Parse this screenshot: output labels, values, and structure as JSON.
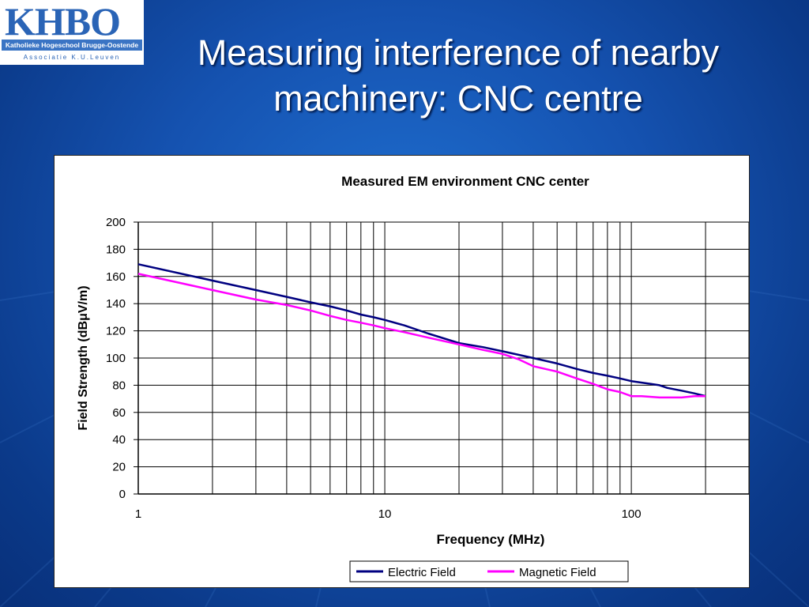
{
  "logo": {
    "name": "KHBO",
    "subtitle": "Katholieke Hogeschool Brugge-Oostende",
    "tagline": "Associatie K.U.Leuven"
  },
  "slide": {
    "title": "Measuring interference of nearby machinery: CNC centre"
  },
  "chart_data": {
    "type": "line",
    "title": "Measured EM environment CNC center",
    "xlabel": "Frequency (MHz)",
    "ylabel": "Field Strength (dBμV/m)",
    "x_scale": "log",
    "xlim": [
      1,
      300
    ],
    "ylim": [
      0,
      200
    ],
    "x_ticks": [
      1,
      10,
      100
    ],
    "x_tick_labels": [
      "1",
      "10",
      "100"
    ],
    "y_ticks": [
      0,
      20,
      40,
      60,
      80,
      100,
      120,
      140,
      160,
      180,
      200
    ],
    "y_tick_labels": [
      "0",
      "20",
      "40",
      "60",
      "80",
      "100",
      "120",
      "140",
      "160",
      "180",
      "200"
    ],
    "grid": true,
    "legend": "bottom-center",
    "series": [
      {
        "name": "Electric Field",
        "color": "#000080",
        "points": [
          [
            1,
            169
          ],
          [
            2,
            157
          ],
          [
            3,
            150
          ],
          [
            4,
            145
          ],
          [
            5,
            141
          ],
          [
            6,
            138
          ],
          [
            7,
            135
          ],
          [
            8,
            132
          ],
          [
            9,
            130
          ],
          [
            10,
            128
          ],
          [
            12,
            124
          ],
          [
            15,
            118
          ],
          [
            20,
            111
          ],
          [
            25,
            108
          ],
          [
            30,
            105
          ],
          [
            40,
            100
          ],
          [
            50,
            96
          ],
          [
            60,
            92
          ],
          [
            70,
            89
          ],
          [
            80,
            87
          ],
          [
            90,
            85
          ],
          [
            100,
            83
          ],
          [
            120,
            81
          ],
          [
            130,
            80
          ],
          [
            140,
            78
          ],
          [
            160,
            76
          ],
          [
            180,
            74
          ],
          [
            200,
            72
          ]
        ]
      },
      {
        "name": "Magnetic Field",
        "color": "#ff00ff",
        "points": [
          [
            1,
            162
          ],
          [
            2,
            150
          ],
          [
            3,
            143
          ],
          [
            4,
            139
          ],
          [
            5,
            135
          ],
          [
            6,
            131
          ],
          [
            7,
            128
          ],
          [
            8,
            126
          ],
          [
            9,
            124
          ],
          [
            10,
            122
          ],
          [
            12,
            119
          ],
          [
            15,
            115
          ],
          [
            20,
            110
          ],
          [
            25,
            106
          ],
          [
            30,
            103
          ],
          [
            35,
            99
          ],
          [
            40,
            94
          ],
          [
            50,
            90
          ],
          [
            60,
            85
          ],
          [
            70,
            81
          ],
          [
            80,
            77
          ],
          [
            90,
            75
          ],
          [
            100,
            72
          ],
          [
            110,
            72
          ],
          [
            130,
            71
          ],
          [
            140,
            71
          ],
          [
            160,
            71
          ],
          [
            180,
            72
          ],
          [
            200,
            72
          ]
        ]
      }
    ]
  }
}
